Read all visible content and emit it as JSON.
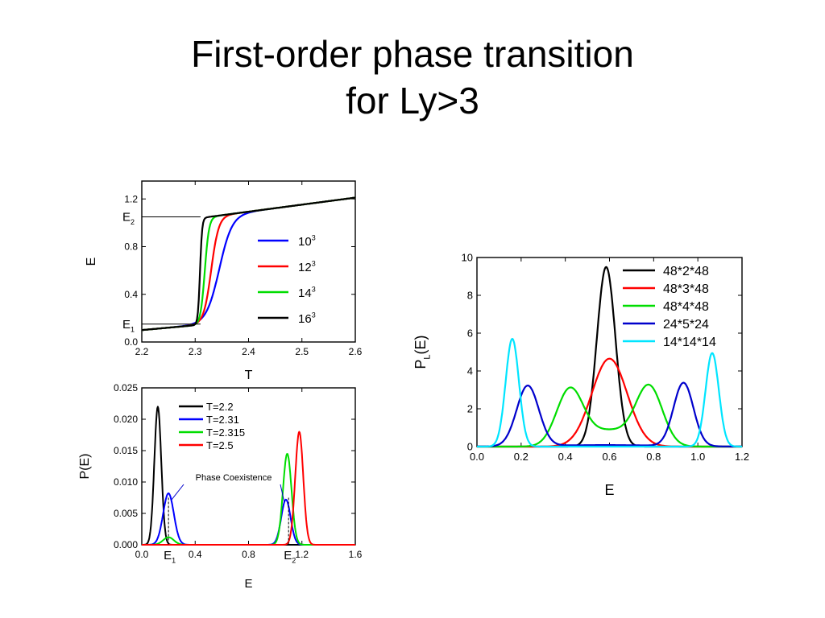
{
  "slide": {
    "title_line1": "First-order phase transition",
    "title_line2": "for Ly>3"
  },
  "chart_data": [
    {
      "id": "energy-vs-temperature",
      "type": "line",
      "xlabel": "T",
      "ylabel": "E",
      "xlim": [
        2.2,
        2.6
      ],
      "ylim": [
        0.0,
        1.35
      ],
      "xticks": [
        "2.2",
        "2.3",
        "2.4",
        "2.5",
        "2.6"
      ],
      "yticks": [
        "0.0",
        "0.4",
        "0.8",
        "1.2"
      ],
      "legend_position": "right",
      "annotations": [
        {
          "label": "E",
          "sub": "2",
          "y": 1.05
        },
        {
          "label": "E",
          "sub": "1",
          "y": 0.15
        }
      ],
      "series": [
        {
          "name": "10",
          "sup": "3",
          "color": "#0000ff",
          "Tc": 2.345,
          "width": 0.012
        },
        {
          "name": "12",
          "sup": "3",
          "color": "#ff0000",
          "Tc": 2.33,
          "width": 0.007
        },
        {
          "name": "14",
          "sup": "3",
          "color": "#00dd00",
          "Tc": 2.318,
          "width": 0.004
        },
        {
          "name": "16",
          "sup": "3",
          "color": "#000000",
          "Tc": 2.309,
          "width": 0.002
        }
      ]
    },
    {
      "id": "energy-distribution-cubes",
      "type": "line",
      "xlabel": "E",
      "ylabel": "P(E)",
      "xlim": [
        0.0,
        1.6
      ],
      "ylim": [
        0.0,
        0.025
      ],
      "xticks": [
        "0.0",
        "0.4",
        "0.8",
        "1.2",
        "1.6"
      ],
      "yticks": [
        "0.000",
        "0.005",
        "0.010",
        "0.015",
        "0.020",
        "0.025"
      ],
      "legend_position": "top-right",
      "annotation": "Phase Coexistence",
      "markers": [
        {
          "label": "E",
          "sub": "1",
          "x": 0.2
        },
        {
          "label": "E",
          "sub": "2",
          "x": 1.1
        }
      ],
      "series": [
        {
          "name": "T=2.2",
          "color": "#000000",
          "peaks": [
            {
              "mu": 0.12,
              "sigma": 0.026,
              "amp": 0.022
            }
          ]
        },
        {
          "name": "T=2.31",
          "color": "#0000ff",
          "peaks": [
            {
              "mu": 0.2,
              "sigma": 0.04,
              "amp": 0.0082
            },
            {
              "mu": 1.08,
              "sigma": 0.035,
              "amp": 0.0072
            }
          ]
        },
        {
          "name": "T=2.315",
          "color": "#00dd00",
          "peaks": [
            {
              "mu": 0.2,
              "sigma": 0.04,
              "amp": 0.0012
            },
            {
              "mu": 1.09,
              "sigma": 0.032,
              "amp": 0.0145
            }
          ]
        },
        {
          "name": "T=2.5",
          "color": "#ff0000",
          "peaks": [
            {
              "mu": 1.18,
              "sigma": 0.03,
              "amp": 0.018
            }
          ]
        }
      ]
    },
    {
      "id": "energy-distribution-slabs",
      "type": "line",
      "xlabel": "E",
      "ylabel": "P(E)",
      "ylabel_sub": "L",
      "xlim": [
        0.0,
        1.2
      ],
      "ylim": [
        0,
        10
      ],
      "xticks": [
        "0.0",
        "0.2",
        "0.4",
        "0.6",
        "0.8",
        "1.0",
        "1.2"
      ],
      "yticks": [
        "0",
        "2",
        "4",
        "6",
        "8",
        "10"
      ],
      "legend_position": "top-right",
      "series": [
        {
          "name": "48*2*48",
          "color": "#000000",
          "peaks": [
            {
              "mu": 0.585,
              "sigma": 0.042,
              "amp": 9.5
            }
          ]
        },
        {
          "name": "48*3*48",
          "color": "#ff0000",
          "peaks": [
            {
              "mu": 0.6,
              "sigma": 0.08,
              "amp": 4.65
            }
          ]
        },
        {
          "name": "48*4*48",
          "color": "#00dd00",
          "peaks": [
            {
              "mu": 0.42,
              "sigma": 0.06,
              "amp": 2.9
            },
            {
              "mu": 0.78,
              "sigma": 0.06,
              "amp": 3.05
            },
            {
              "mu": 0.6,
              "sigma": 0.11,
              "amp": 0.85
            }
          ]
        },
        {
          "name": "24*5*24",
          "color": "#0000cc",
          "peaks": [
            {
              "mu": 0.23,
              "sigma": 0.05,
              "amp": 3.2
            },
            {
              "mu": 0.935,
              "sigma": 0.045,
              "amp": 3.35
            },
            {
              "mu": 0.58,
              "sigma": 0.25,
              "amp": 0.08
            }
          ]
        },
        {
          "name": "14*14*14",
          "color": "#00e5ff",
          "peaks": [
            {
              "mu": 0.16,
              "sigma": 0.03,
              "amp": 5.7
            },
            {
              "mu": 1.065,
              "sigma": 0.03,
              "amp": 4.95
            }
          ]
        }
      ]
    }
  ]
}
